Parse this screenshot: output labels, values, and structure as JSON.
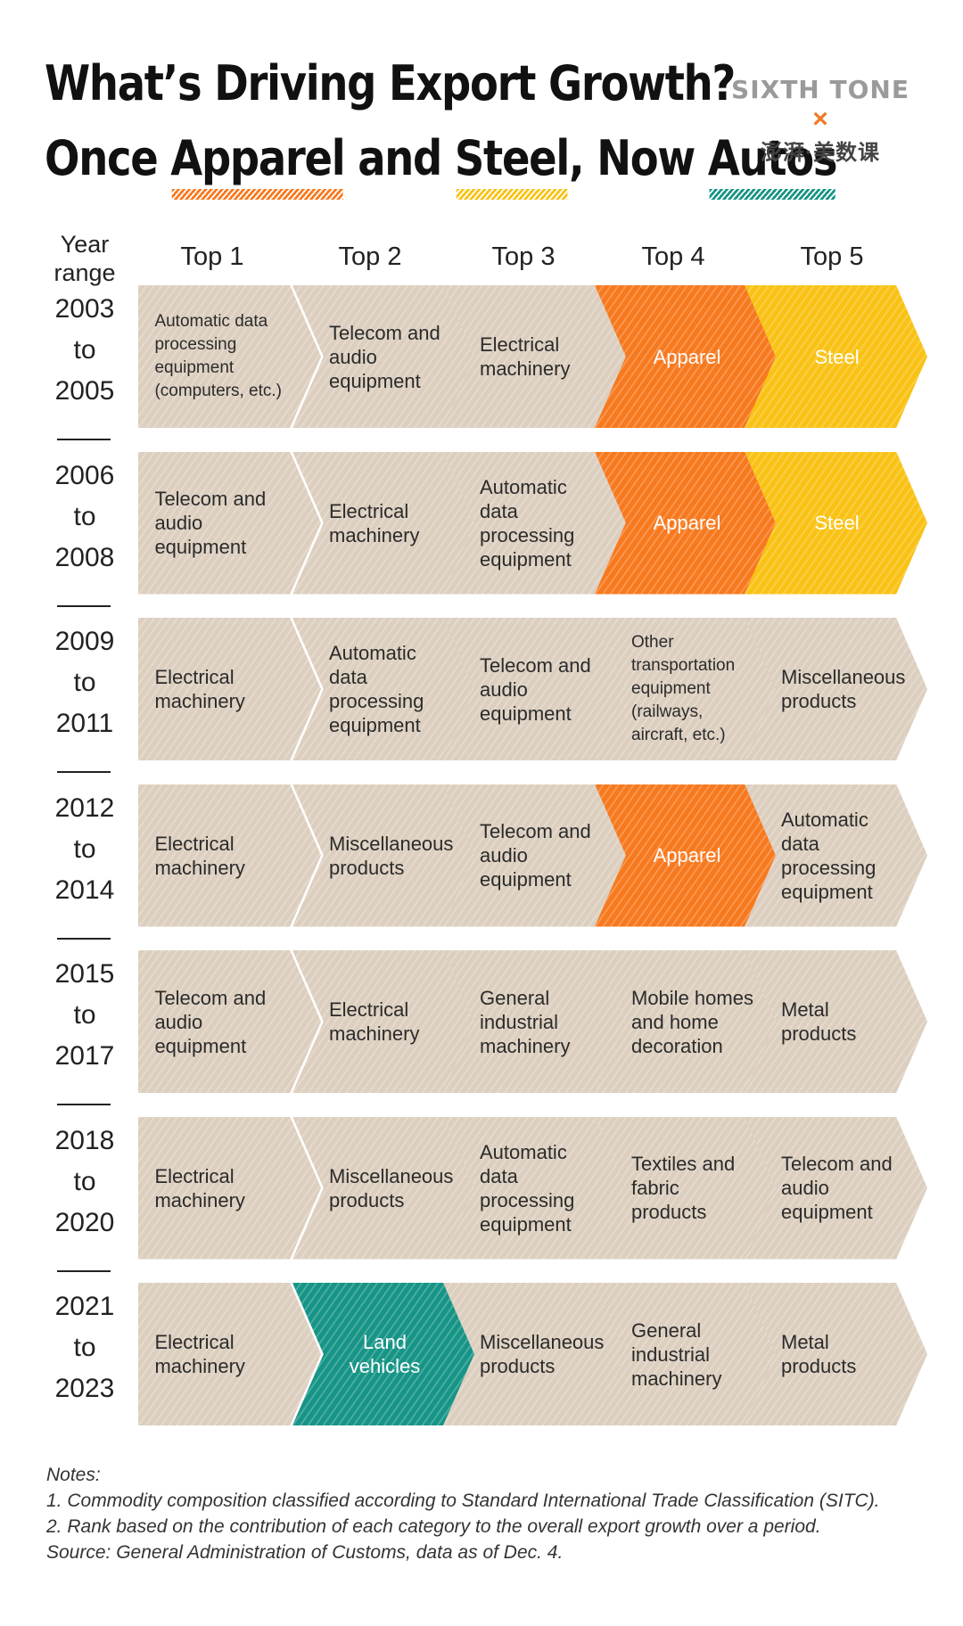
{
  "title": {
    "line1": "What’s Driving Export Growth?",
    "line2_parts": [
      "Once ",
      "Apparel",
      " and ",
      "Steel",
      ", Now ",
      "Autos"
    ]
  },
  "brand": {
    "name": "SIXTH TONE",
    "x": "×",
    "partner": "澎湃·美数课"
  },
  "colors": {
    "neutral": "#dccfbf",
    "apparel": "#f7791e",
    "steel": "#f9c214",
    "autos": "#169486",
    "underline_apparel": "#f7791e",
    "underline_steel": "#f9c214",
    "underline_autos": "#169486"
  },
  "chart_data": {
    "type": "table",
    "columns": [
      "Year range",
      "Top 1",
      "Top 2",
      "Top 3",
      "Top 4",
      "Top 5"
    ],
    "year_header": "Year range",
    "rows": [
      {
        "years": [
          "2003",
          "to",
          "2005"
        ],
        "items": [
          {
            "label": "Automatic data processing equipment (computers, etc.)",
            "hl": "",
            "small": true
          },
          {
            "label": "Telecom and audio equipment",
            "hl": ""
          },
          {
            "label": "Electrical machinery",
            "hl": ""
          },
          {
            "label": "Apparel",
            "hl": "apparel"
          },
          {
            "label": "Steel",
            "hl": "steel"
          }
        ]
      },
      {
        "years": [
          "2006",
          "to",
          "2008"
        ],
        "items": [
          {
            "label": "Telecom and audio equipment",
            "hl": ""
          },
          {
            "label": "Electrical machinery",
            "hl": ""
          },
          {
            "label": "Automatic data processing equipment",
            "hl": ""
          },
          {
            "label": "Apparel",
            "hl": "apparel"
          },
          {
            "label": "Steel",
            "hl": "steel"
          }
        ]
      },
      {
        "years": [
          "2009",
          "to",
          "2011"
        ],
        "items": [
          {
            "label": "Electrical machinery",
            "hl": ""
          },
          {
            "label": "Automatic data processing equipment",
            "hl": ""
          },
          {
            "label": "Telecom and audio equipment",
            "hl": ""
          },
          {
            "label": "Other transportation equipment (railways, aircraft, etc.)",
            "hl": "",
            "small": true
          },
          {
            "label": "Miscellaneous products",
            "hl": ""
          }
        ]
      },
      {
        "years": [
          "2012",
          "to",
          "2014"
        ],
        "items": [
          {
            "label": "Electrical machinery",
            "hl": ""
          },
          {
            "label": "Miscellaneous products",
            "hl": ""
          },
          {
            "label": "Telecom and audio equipment",
            "hl": ""
          },
          {
            "label": "Apparel",
            "hl": "apparel"
          },
          {
            "label": "Automatic data processing equipment",
            "hl": ""
          }
        ]
      },
      {
        "years": [
          "2015",
          "to",
          "2017"
        ],
        "items": [
          {
            "label": "Telecom and audio equipment",
            "hl": ""
          },
          {
            "label": "Electrical machinery",
            "hl": ""
          },
          {
            "label": "General industrial machinery",
            "hl": ""
          },
          {
            "label": "Mobile homes and home decoration",
            "hl": ""
          },
          {
            "label": "Metal products",
            "hl": ""
          }
        ]
      },
      {
        "years": [
          "2018",
          "to",
          "2020"
        ],
        "items": [
          {
            "label": "Electrical machinery",
            "hl": ""
          },
          {
            "label": "Miscellaneous products",
            "hl": ""
          },
          {
            "label": "Automatic data processing equipment",
            "hl": ""
          },
          {
            "label": "Textiles and fabric products",
            "hl": ""
          },
          {
            "label": "Telecom and audio equipment",
            "hl": ""
          }
        ]
      },
      {
        "years": [
          "2021",
          "to",
          "2023"
        ],
        "items": [
          {
            "label": "Electrical machinery",
            "hl": ""
          },
          {
            "label": "Land vehicles",
            "hl": "autos"
          },
          {
            "label": "Miscellaneous products",
            "hl": ""
          },
          {
            "label": "General industrial machinery",
            "hl": ""
          },
          {
            "label": "Metal products",
            "hl": ""
          }
        ]
      }
    ]
  },
  "notes": [
    "Notes:",
    "1. Commodity composition classified according to Standard International Trade Classification (SITC).",
    "2. Rank based on the contribution of each category to the overall export growth over a period.",
    "Source: General Administration of Customs, data as of Dec. 4."
  ]
}
